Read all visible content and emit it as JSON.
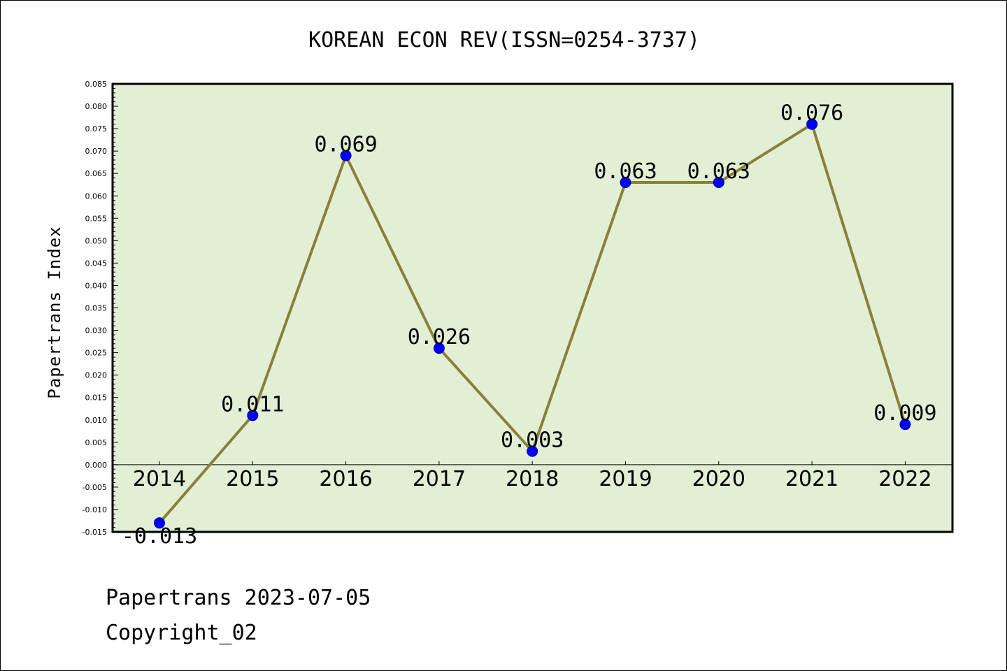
{
  "chart_data": {
    "type": "line",
    "title": "KOREAN ECON REV(ISSN=0254-3737)",
    "ylabel": "Papertrans Index",
    "xlabel": "",
    "x": [
      "2014",
      "2015",
      "2016",
      "2017",
      "2018",
      "2019",
      "2020",
      "2021",
      "2022"
    ],
    "values": [
      -0.013,
      0.011,
      0.069,
      0.026,
      0.003,
      0.063,
      0.063,
      0.076,
      0.009
    ],
    "data_labels": [
      "-0.013",
      "0.011",
      "0.069",
      "0.026",
      "0.003",
      "0.063",
      "0.063",
      "0.076",
      "0.009"
    ],
    "ylim": [
      -0.015,
      0.085
    ],
    "yticks": [
      "-0.015",
      "-0.010",
      "-0.005",
      "0.000",
      "0.005",
      "0.010",
      "0.015",
      "0.020",
      "0.025",
      "0.030",
      "0.035",
      "0.040",
      "0.045",
      "0.050",
      "0.055",
      "0.060",
      "0.065",
      "0.070",
      "0.075",
      "0.080",
      "0.085"
    ],
    "grid": false,
    "colors": {
      "plot_background": "#e2efd5",
      "line": "#8b8039",
      "marker_fill": "#0000ff",
      "marker_edge": "#00008b",
      "zero_line": "#000000"
    }
  },
  "footer": {
    "line1": "Papertrans 2023-07-05",
    "line2": "Copyright_02"
  }
}
